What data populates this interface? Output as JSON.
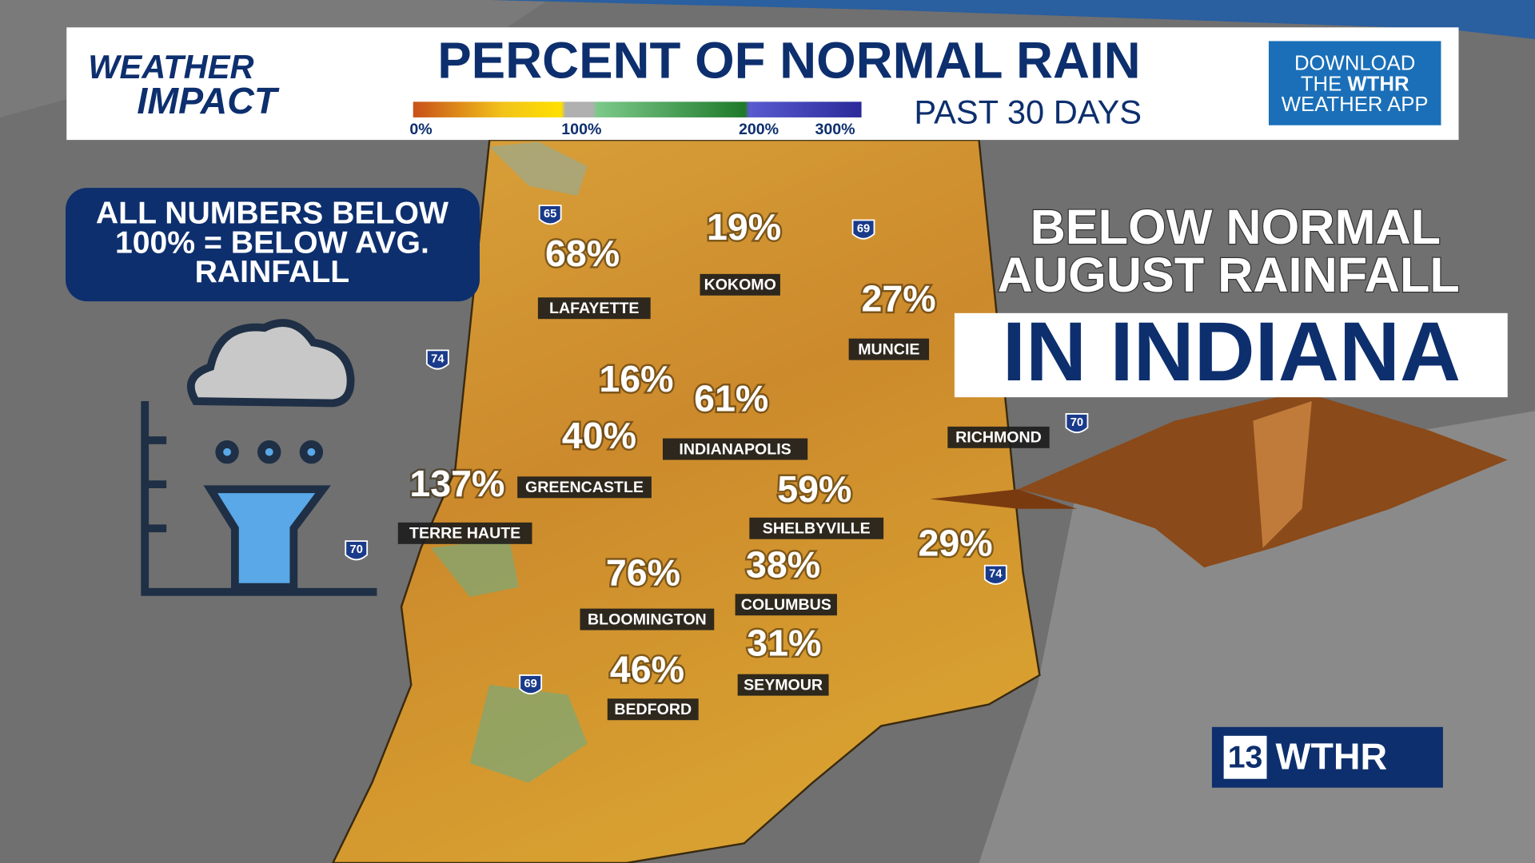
{
  "header": {
    "logo": [
      "WEATHER",
      "IMPACT"
    ],
    "title": "PERCENT OF NORMAL RAIN",
    "subtitle": "PAST 30 DAYS",
    "legend": [
      "0%",
      "100%",
      "200%",
      "300%"
    ],
    "app_promo": [
      "DOWNLOAD",
      "THE",
      "WTHR",
      "WEATHER APP"
    ]
  },
  "note": [
    "ALL NUMBERS BELOW",
    "100% = BELOW AVG.",
    "RAINFALL"
  ],
  "headline": [
    "BELOW NORMAL",
    "AUGUST RAINFALL",
    "IN INDIANA"
  ],
  "cities": [
    {
      "name": "LAFAYETTE",
      "value": "68%"
    },
    {
      "name": "KOKOMO",
      "value": "19%"
    },
    {
      "name": "MUNCIE",
      "value": "27%"
    },
    {
      "value": "16%"
    },
    {
      "name": "INDIANAPOLIS",
      "value": "61%"
    },
    {
      "name": "GREENCASTLE",
      "value": "40%"
    },
    {
      "name": "TERRE HAUTE",
      "value": "137%"
    },
    {
      "name": "SHELBYVILLE",
      "value": "59%"
    },
    {
      "name": "RICHMOND"
    },
    {
      "value": "29%"
    },
    {
      "name": "COLUMBUS",
      "value": "38%"
    },
    {
      "name": "BLOOMINGTON",
      "value": "76%"
    },
    {
      "name": "SEYMOUR",
      "value": "31%"
    },
    {
      "name": "BEDFORD",
      "value": "46%"
    }
  ],
  "highways": [
    "65",
    "69",
    "74",
    "70",
    "70",
    "74",
    "69"
  ],
  "brand": {
    "channel": "13",
    "name": "WTHR"
  }
}
